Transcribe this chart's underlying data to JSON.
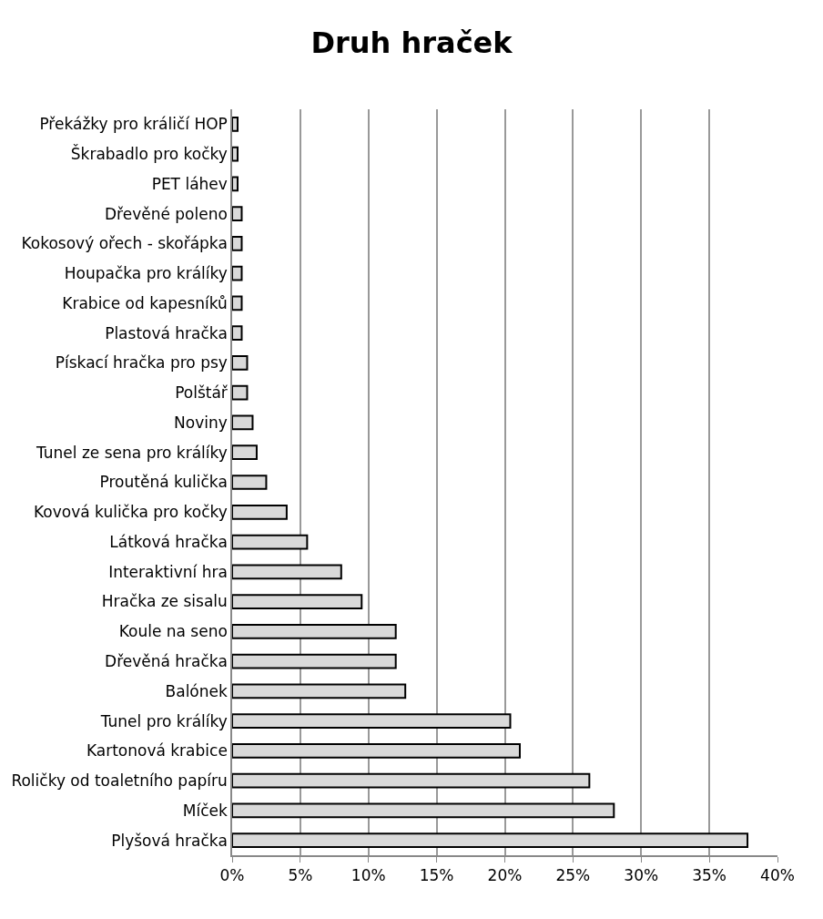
{
  "chart_data": {
    "type": "bar",
    "orientation": "horizontal",
    "title": "Druh hraček",
    "categories": [
      "Překážky pro králičí HOP",
      "Škrabadlo pro kočky",
      "PET láhev",
      "Dřevěné poleno",
      "Kokosový ořech - skořápka",
      "Houpačka pro králíky",
      "Krabice od kapesníků",
      "Plastová hračka",
      "Pískací hračka pro psy",
      "Polštář",
      "Noviny",
      "Tunel ze sena pro králíky",
      "Proutěná kulička",
      "Kovová kulička pro kočky",
      "Látková hračka",
      "Interaktivní hra",
      "Hračka ze sisalu",
      "Koule na seno",
      "Dřevěná hračka",
      "Balónek",
      "Tunel pro králíky",
      "Kartonová krabice",
      "Roličky od toaletního papíru",
      "Míček",
      "Plyšová hračka"
    ],
    "values": [
      0.4,
      0.4,
      0.4,
      0.7,
      0.7,
      0.7,
      0.7,
      0.7,
      1.1,
      1.1,
      1.5,
      1.8,
      2.5,
      4.0,
      5.5,
      8.0,
      9.5,
      12.0,
      12.0,
      12.7,
      20.4,
      21.1,
      26.2,
      28.0,
      37.8
    ],
    "color": "#d9d9d9",
    "xlim": [
      0,
      40
    ],
    "xticks": [
      {
        "value": 0,
        "label": "0%"
      },
      {
        "value": 5,
        "label": "5%"
      },
      {
        "value": 10,
        "label": "10%"
      },
      {
        "value": 15,
        "label": "15%"
      },
      {
        "value": 20,
        "label": "20%"
      },
      {
        "value": 25,
        "label": "25%"
      },
      {
        "value": 30,
        "label": "30%"
      },
      {
        "value": 35,
        "label": "35%"
      },
      {
        "value": 40,
        "label": "40%"
      }
    ],
    "grid": "x"
  }
}
